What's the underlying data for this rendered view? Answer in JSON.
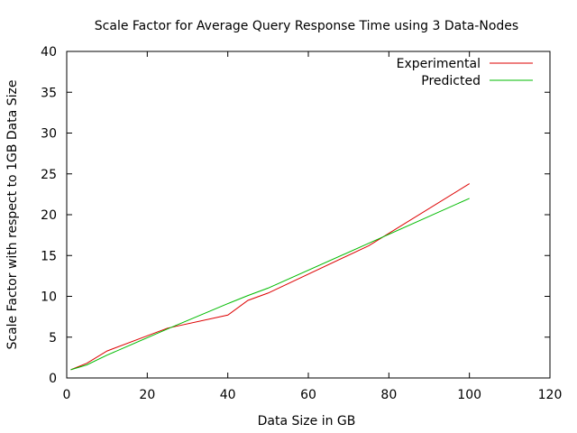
{
  "chart_data": {
    "type": "line",
    "title": "Scale Factor for Average Query Response Time using 3 Data-Nodes",
    "xlabel": "Data Size in GB",
    "ylabel": "Scale Factor with respect to 1GB Data Size",
    "xlim": [
      0,
      120
    ],
    "ylim": [
      0,
      40
    ],
    "x_ticks": [
      0,
      20,
      40,
      60,
      80,
      100,
      120
    ],
    "y_ticks": [
      0,
      5,
      10,
      15,
      20,
      25,
      30,
      35,
      40
    ],
    "grid": false,
    "legend_position": "top-right",
    "series": [
      {
        "name": "Experimental",
        "color": "#dd0000",
        "x": [
          1,
          5,
          10,
          25,
          40,
          45,
          50,
          75,
          100
        ],
        "y": [
          1.0,
          1.8,
          3.3,
          6.1,
          7.7,
          9.5,
          10.4,
          16.2,
          23.8
        ]
      },
      {
        "name": "Predicted",
        "color": "#00bb00",
        "x": [
          1,
          5,
          10,
          25,
          40,
          45,
          50,
          75,
          100
        ],
        "y": [
          1.0,
          1.6,
          2.8,
          6.0,
          9.1,
          10.1,
          11.0,
          16.5,
          22.0
        ]
      }
    ]
  }
}
